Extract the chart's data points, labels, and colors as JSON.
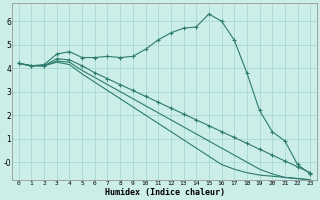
{
  "xlabel": "Humidex (Indice chaleur)",
  "ylabel": "",
  "background_color": "#cceee8",
  "grid_color": "#aad8d3",
  "line_color": "#2d7a6e",
  "xlim": [
    -0.5,
    23.5
  ],
  "ylim": [
    -0.75,
    6.75
  ],
  "xticks": [
    0,
    1,
    2,
    3,
    4,
    5,
    6,
    7,
    8,
    9,
    10,
    11,
    12,
    13,
    14,
    15,
    16,
    17,
    18,
    19,
    20,
    21,
    22,
    23
  ],
  "yticks": [
    0,
    1,
    2,
    3,
    4,
    5,
    6
  ],
  "ytick_labels": [
    "-0",
    "1",
    "2",
    "3",
    "4",
    "5",
    "6"
  ],
  "line1_x": [
    0,
    1,
    2,
    3,
    4,
    5,
    6,
    7,
    8,
    9,
    10,
    11,
    12,
    13,
    14,
    15,
    16,
    17,
    18,
    19,
    20,
    21,
    22,
    23
  ],
  "line1_y": [
    4.2,
    4.1,
    4.15,
    4.6,
    4.7,
    4.45,
    4.45,
    4.5,
    4.45,
    4.5,
    4.8,
    5.2,
    5.5,
    5.7,
    5.75,
    6.3,
    6.0,
    5.2,
    3.8,
    2.2,
    1.3,
    0.9,
    -0.1,
    -0.5
  ],
  "line2_x": [
    0,
    1,
    2,
    3,
    4,
    5,
    6,
    7,
    8,
    9,
    10,
    11,
    12,
    13,
    14,
    15,
    16,
    17,
    18,
    19,
    20,
    21,
    22,
    23
  ],
  "line2_y": [
    4.2,
    4.1,
    4.1,
    4.4,
    4.35,
    4.1,
    3.8,
    3.55,
    3.3,
    3.05,
    2.8,
    2.55,
    2.3,
    2.05,
    1.8,
    1.55,
    1.3,
    1.05,
    0.8,
    0.55,
    0.3,
    0.05,
    -0.2,
    -0.45
  ],
  "line3_x": [
    0,
    1,
    2,
    3,
    4,
    5,
    6,
    7,
    8,
    9,
    10,
    11,
    12,
    13,
    14,
    15,
    16,
    17,
    18,
    19,
    20,
    21,
    22,
    23
  ],
  "line3_y": [
    4.2,
    4.1,
    4.1,
    4.3,
    4.25,
    3.9,
    3.6,
    3.3,
    3.0,
    2.7,
    2.4,
    2.1,
    1.8,
    1.5,
    1.2,
    0.9,
    0.6,
    0.3,
    0.0,
    -0.3,
    -0.5,
    -0.65,
    -0.7,
    -0.75
  ],
  "line4_x": [
    0,
    1,
    2,
    3,
    4,
    5,
    6,
    7,
    8,
    9,
    10,
    11,
    12,
    13,
    14,
    15,
    16,
    17,
    18,
    19,
    20,
    21,
    22,
    23
  ],
  "line4_y": [
    4.2,
    4.1,
    4.1,
    4.25,
    4.15,
    3.75,
    3.4,
    3.05,
    2.7,
    2.35,
    2.0,
    1.65,
    1.3,
    0.95,
    0.6,
    0.25,
    -0.1,
    -0.3,
    -0.45,
    -0.55,
    -0.6,
    -0.65,
    -0.7,
    -0.75
  ],
  "marker_indices_l1": [
    0,
    1,
    2,
    3,
    4,
    5,
    6,
    7,
    8,
    9,
    10,
    11,
    12,
    13,
    14,
    15,
    16,
    17,
    18,
    19,
    20,
    21,
    22,
    23
  ],
  "marker_indices_l2": [
    3,
    4,
    15,
    19,
    20,
    21,
    22,
    23
  ],
  "marker_indices_l3": [],
  "marker_indices_l4": []
}
